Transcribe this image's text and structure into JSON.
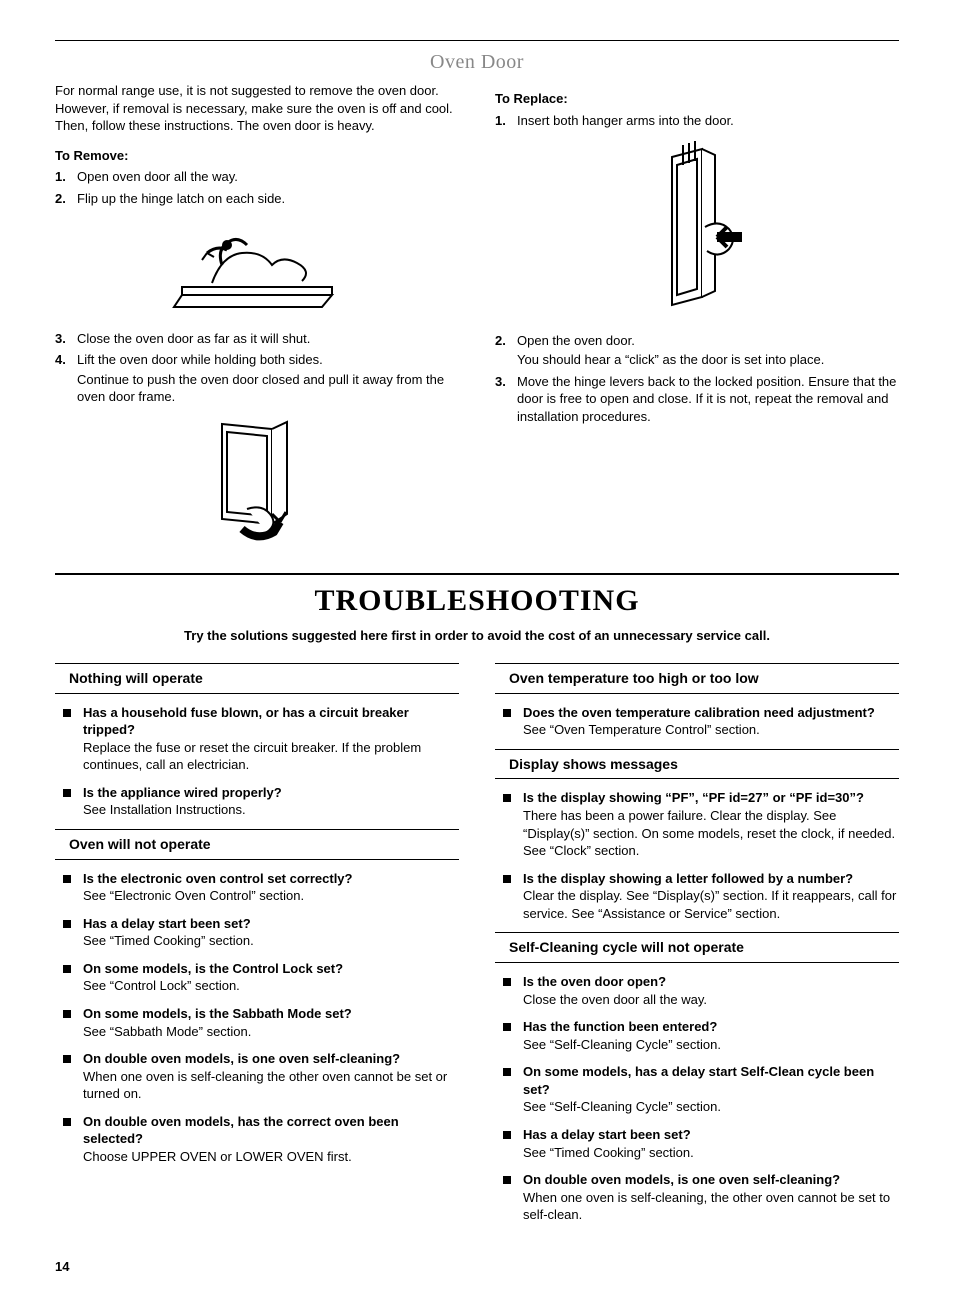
{
  "ovenDoor": {
    "title": "Oven Door",
    "intro": "For normal range use, it is not suggested to remove the oven door. However, if removal is necessary, make sure the oven is off and cool. Then, follow these instructions. The oven door is heavy.",
    "remove": {
      "heading": "To Remove:",
      "steps": [
        {
          "n": "1.",
          "text": "Open oven door all the way."
        },
        {
          "n": "2.",
          "text": "Flip up the hinge latch on each side."
        },
        {
          "n": "3.",
          "text": "Close the oven door as far as it will shut."
        },
        {
          "n": "4.",
          "text": "Lift the oven door while holding both sides.",
          "body": "Continue to push the oven door closed and pull it away from the oven door frame."
        }
      ]
    },
    "replace": {
      "heading": "To Replace:",
      "steps": [
        {
          "n": "1.",
          "text": "Insert both hanger arms into the door."
        },
        {
          "n": "2.",
          "text": "Open the oven door.",
          "body": "You should hear a “click” as the door is set into place."
        },
        {
          "n": "3.",
          "text": "Move the hinge levers back to the locked position. Ensure that the door is free to open and close. If it is not, repeat the removal and installation procedures."
        }
      ]
    }
  },
  "troubleshooting": {
    "title": "TROUBLESHOOTING",
    "lead": "Try the solutions suggested here first in order to avoid the cost of an unnecessary service call.",
    "left": [
      {
        "heading": "Nothing will operate",
        "items": [
          {
            "q": "Has a household fuse blown, or has a circuit breaker tripped?",
            "a": "Replace the fuse or reset the circuit breaker. If the problem continues, call an electrician."
          },
          {
            "q": "Is the appliance wired properly?",
            "a": "See Installation Instructions."
          }
        ]
      },
      {
        "heading": "Oven will not operate",
        "items": [
          {
            "q": "Is the electronic oven control set correctly?",
            "a": "See “Electronic Oven Control” section."
          },
          {
            "q": "Has a delay start been set?",
            "a": "See “Timed Cooking” section."
          },
          {
            "q": "On some models, is the Control Lock set?",
            "a": "See “Control Lock” section."
          },
          {
            "q": "On some models, is the Sabbath Mode set?",
            "a": "See “Sabbath Mode” section."
          },
          {
            "q": "On double oven models, is one oven self-cleaning?",
            "a": "When one oven is self-cleaning the other oven cannot be set or turned on."
          },
          {
            "q": "On double oven models, has the correct oven been selected?",
            "a": "Choose UPPER OVEN or LOWER OVEN first."
          }
        ]
      }
    ],
    "right": [
      {
        "heading": "Oven temperature too high or too low",
        "items": [
          {
            "q": "Does the oven temperature calibration need adjustment?",
            "a": "See “Oven Temperature Control” section."
          }
        ]
      },
      {
        "heading": "Display shows messages",
        "items": [
          {
            "q": "Is the display showing “PF”, “PF id=27” or “PF id=30”?",
            "a": "There has been a power failure. Clear the display. See “Display(s)” section. On some models, reset the clock, if needed. See “Clock” section."
          },
          {
            "q": "Is the display showing a letter followed by a number?",
            "a": "Clear the display. See “Display(s)” section. If it reappears, call for service. See “Assistance or Service” section."
          }
        ]
      },
      {
        "heading": "Self-Cleaning cycle will not operate",
        "items": [
          {
            "q": "Is the oven door open?",
            "a": "Close the oven door all the way."
          },
          {
            "q": "Has the function been entered?",
            "a": "See “Self-Cleaning Cycle” section."
          },
          {
            "q": "On some models, has a delay start Self-Clean cycle been set?",
            "a": "See “Self-Cleaning Cycle” section."
          },
          {
            "q": "Has a delay start been set?",
            "a": "See “Timed Cooking” section."
          },
          {
            "q": "On double oven models, is one oven self-cleaning?",
            "a": "When one oven is self-cleaning, the other oven cannot be set to self-clean."
          }
        ]
      }
    ]
  },
  "pageNumber": "14"
}
